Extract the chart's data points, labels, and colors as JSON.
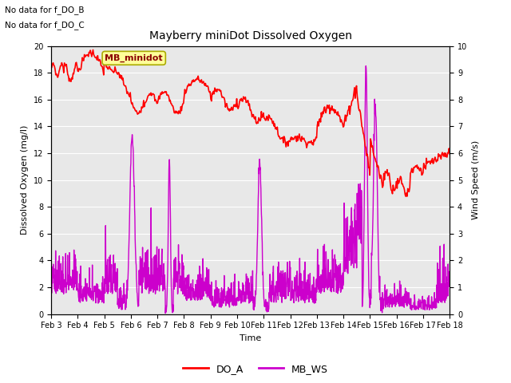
{
  "title": "Mayberry miniDot Dissolved Oxygen",
  "xlabel": "Time",
  "ylabel_left": "Dissolved Oxygen (mg/l)",
  "ylabel_right": "Wind Speed (m/s)",
  "annotation1": "No data for f_DO_B",
  "annotation2": "No data for f_DO_C",
  "box_label": "MB_minidot",
  "legend_labels": [
    "DO_A",
    "MB_WS"
  ],
  "do_color": "#ff0000",
  "ws_color": "#cc00cc",
  "ylim_left": [
    0,
    20
  ],
  "ylim_right": [
    0,
    10
  ],
  "yticks_left": [
    0,
    2,
    4,
    6,
    8,
    10,
    12,
    14,
    16,
    18,
    20
  ],
  "yticks_right": [
    0.0,
    1.0,
    2.0,
    3.0,
    4.0,
    5.0,
    6.0,
    7.0,
    8.0,
    9.0,
    10.0
  ],
  "xtick_labels": [
    "Feb 3",
    "Feb 4",
    "Feb 5",
    "Feb 6",
    "Feb 7",
    "Feb 8",
    "Feb 9",
    "Feb 10",
    "Feb 11",
    "Feb 12",
    "Feb 13",
    "Feb 14",
    "Feb 15",
    "Feb 16",
    "Feb 17",
    "Feb 18"
  ],
  "bg_color": "#e8e8e8",
  "fig_color": "#ffffff",
  "linewidth": 1.0,
  "figsize": [
    6.4,
    4.8
  ],
  "dpi": 100
}
